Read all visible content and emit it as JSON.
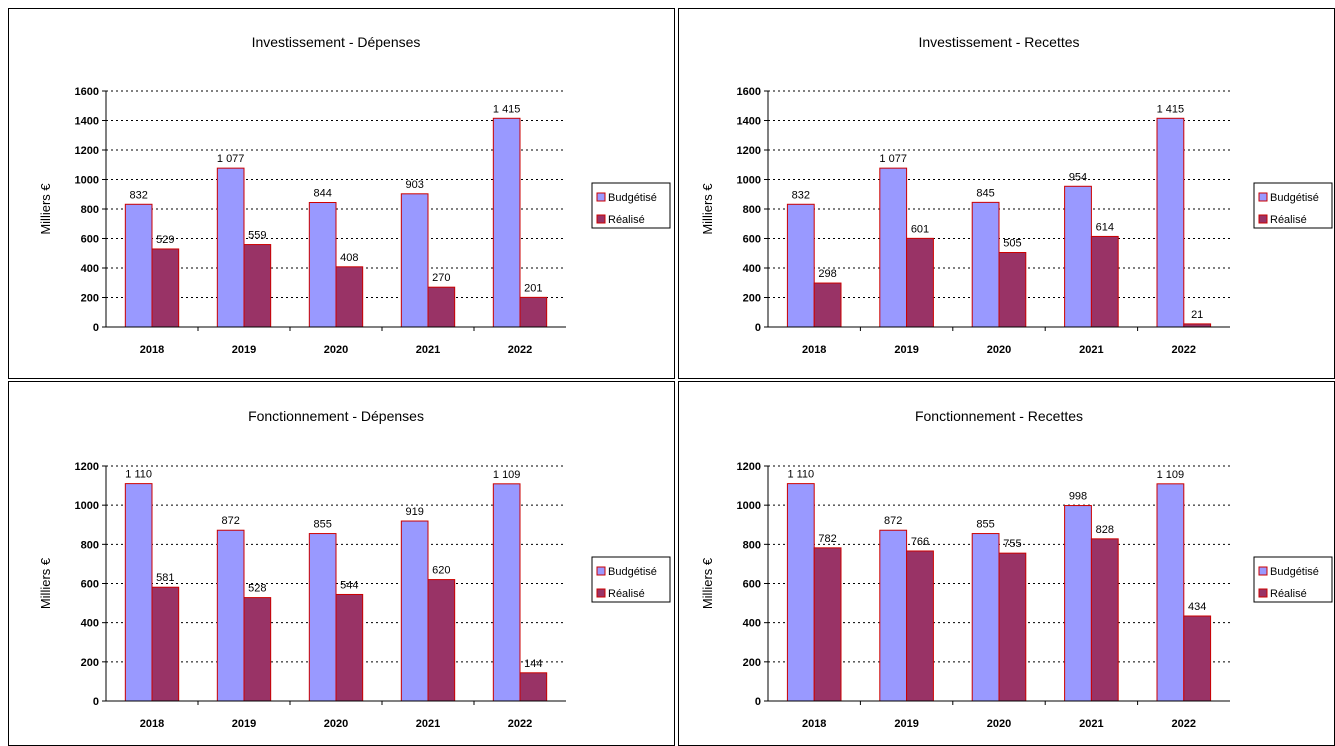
{
  "chart_data": [
    {
      "type": "bar",
      "title": "Investissement - Dépenses",
      "ylabel": "Milliers €",
      "xlabel": "",
      "ylim": [
        0,
        1600
      ],
      "yticks": [
        0,
        200,
        400,
        600,
        800,
        1000,
        1200,
        1400,
        1600
      ],
      "categories": [
        "2018",
        "2019",
        "2020",
        "2021",
        "2022"
      ],
      "series": [
        {
          "name": "Budgétisé",
          "values": [
            832,
            1077,
            844,
            903,
            1415
          ],
          "labels": [
            "832",
            "1 077",
            "844",
            "903",
            "1 415"
          ],
          "color": "#9999ff"
        },
        {
          "name": "Réalisé",
          "values": [
            529,
            559,
            408,
            270,
            201
          ],
          "labels": [
            "529",
            "559",
            "408",
            "270",
            "201"
          ],
          "color": "#993366"
        }
      ],
      "grid": "horizontal-dotted",
      "legend": "right"
    },
    {
      "type": "bar",
      "title": "Investissement - Recettes",
      "ylabel": "Milliers €",
      "xlabel": "",
      "ylim": [
        0,
        1600
      ],
      "yticks": [
        0,
        200,
        400,
        600,
        800,
        1000,
        1200,
        1400,
        1600
      ],
      "categories": [
        "2018",
        "2019",
        "2020",
        "2021",
        "2022"
      ],
      "series": [
        {
          "name": "Budgétisé",
          "values": [
            832,
            1077,
            845,
            954,
            1415
          ],
          "labels": [
            "832",
            "1 077",
            "845",
            "954",
            "1 415"
          ],
          "color": "#9999ff"
        },
        {
          "name": "Réalisé",
          "values": [
            298,
            601,
            505,
            614,
            21
          ],
          "labels": [
            "298",
            "601",
            "505",
            "614",
            "21"
          ],
          "color": "#993366"
        }
      ],
      "grid": "horizontal-dotted",
      "legend": "right"
    },
    {
      "type": "bar",
      "title": "Fonctionnement - Dépenses",
      "ylabel": "Milliers €",
      "xlabel": "",
      "ylim": [
        0,
        1200
      ],
      "yticks": [
        0,
        200,
        400,
        600,
        800,
        1000,
        1200
      ],
      "categories": [
        "2018",
        "2019",
        "2020",
        "2021",
        "2022"
      ],
      "series": [
        {
          "name": "Budgétisé",
          "values": [
            1110,
            872,
            855,
            919,
            1109
          ],
          "labels": [
            "1 110",
            "872",
            "855",
            "919",
            "1 109"
          ],
          "color": "#9999ff"
        },
        {
          "name": "Réalisé",
          "values": [
            581,
            528,
            544,
            620,
            144
          ],
          "labels": [
            "581",
            "528",
            "544",
            "620",
            "144"
          ],
          "color": "#993366"
        }
      ],
      "grid": "horizontal-dotted",
      "legend": "right"
    },
    {
      "type": "bar",
      "title": "Fonctionnement - Recettes",
      "ylabel": "Milliers €",
      "xlabel": "",
      "ylim": [
        0,
        1200
      ],
      "yticks": [
        0,
        200,
        400,
        600,
        800,
        1000,
        1200
      ],
      "categories": [
        "2018",
        "2019",
        "2020",
        "2021",
        "2022"
      ],
      "series": [
        {
          "name": "Budgétisé",
          "values": [
            1110,
            872,
            855,
            998,
            1109
          ],
          "labels": [
            "1 110",
            "872",
            "855",
            "998",
            "1 109"
          ],
          "color": "#9999ff"
        },
        {
          "name": "Réalisé",
          "values": [
            782,
            766,
            755,
            828,
            434
          ],
          "labels": [
            "782",
            "766",
            "755",
            "828",
            "434"
          ],
          "color": "#993366"
        }
      ],
      "grid": "horizontal-dotted",
      "legend": "right"
    }
  ]
}
